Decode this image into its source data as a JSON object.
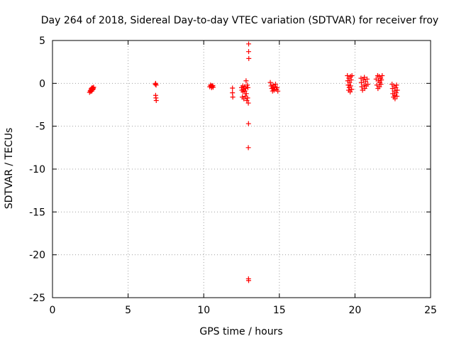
{
  "chart_data": {
    "type": "scatter",
    "title": "Day 264 of 2018, Sidereal Day-to-day VTEC variation (SDTVAR) for receiver froy",
    "xlabel": "GPS time / hours",
    "ylabel": "SDTVAR / TECUs",
    "xlim": [
      0,
      25
    ],
    "ylim": [
      -25,
      5
    ],
    "xticks": [
      0,
      5,
      10,
      15,
      20,
      25
    ],
    "yticks": [
      5,
      0,
      -5,
      -10,
      -15,
      -20,
      -25
    ],
    "grid": true,
    "marker": "+",
    "color": "#ff0000",
    "series": [
      {
        "name": "SDTVAR",
        "points": [
          [
            2.45,
            -1.05
          ],
          [
            2.5,
            -0.85
          ],
          [
            2.52,
            -0.95
          ],
          [
            2.55,
            -0.7
          ],
          [
            2.58,
            -0.6
          ],
          [
            2.6,
            -0.9
          ],
          [
            2.62,
            -0.5
          ],
          [
            2.65,
            -0.75
          ],
          [
            2.68,
            -0.55
          ],
          [
            2.7,
            -0.65
          ],
          [
            2.72,
            -0.45
          ],
          [
            6.8,
            -0.1
          ],
          [
            6.82,
            0.0
          ],
          [
            6.85,
            -0.2
          ],
          [
            6.82,
            -1.4
          ],
          [
            6.84,
            -1.7
          ],
          [
            6.86,
            -2.0
          ],
          [
            10.4,
            -0.4
          ],
          [
            10.45,
            -0.2
          ],
          [
            10.5,
            -0.3
          ],
          [
            10.52,
            -0.5
          ],
          [
            10.55,
            -0.35
          ],
          [
            10.6,
            -0.25
          ],
          [
            10.62,
            -0.45
          ],
          [
            11.9,
            -0.55
          ],
          [
            11.9,
            -1.1
          ],
          [
            11.92,
            -1.6
          ],
          [
            12.5,
            -0.5
          ],
          [
            12.52,
            -0.8
          ],
          [
            12.55,
            -1.6
          ],
          [
            12.58,
            -0.3
          ],
          [
            12.6,
            -1.0
          ],
          [
            12.62,
            -0.7
          ],
          [
            12.65,
            -1.8
          ],
          [
            12.7,
            -0.4
          ],
          [
            12.72,
            -0.9
          ],
          [
            12.75,
            -1.5
          ],
          [
            12.78,
            -0.6
          ],
          [
            12.8,
            0.3
          ],
          [
            12.82,
            -1.2
          ],
          [
            12.85,
            -2.0
          ],
          [
            12.88,
            -0.2
          ],
          [
            12.9,
            -1.7
          ],
          [
            12.92,
            -0.5
          ],
          [
            12.95,
            -2.3
          ],
          [
            12.97,
            4.6
          ],
          [
            12.97,
            3.7
          ],
          [
            12.98,
            2.9
          ],
          [
            12.96,
            -4.7
          ],
          [
            12.95,
            -7.5
          ],
          [
            12.96,
            -22.8
          ],
          [
            12.97,
            -23.0
          ],
          [
            14.4,
            0.1
          ],
          [
            14.45,
            -0.3
          ],
          [
            14.5,
            -0.6
          ],
          [
            14.55,
            -0.9
          ],
          [
            14.58,
            -0.2
          ],
          [
            14.6,
            -0.5
          ],
          [
            14.65,
            -0.8
          ],
          [
            14.7,
            -0.4
          ],
          [
            14.75,
            -0.1
          ],
          [
            14.8,
            -0.7
          ],
          [
            14.85,
            -0.5
          ],
          [
            14.9,
            -0.9
          ],
          [
            19.5,
            0.9
          ],
          [
            19.52,
            0.3
          ],
          [
            19.55,
            -0.2
          ],
          [
            19.58,
            -0.8
          ],
          [
            19.6,
            0.6
          ],
          [
            19.62,
            -0.5
          ],
          [
            19.65,
            0.1
          ],
          [
            19.68,
            -1.0
          ],
          [
            19.7,
            0.8
          ],
          [
            19.72,
            -0.3
          ],
          [
            19.75,
            0.4
          ],
          [
            19.78,
            -0.7
          ],
          [
            19.8,
            0.9
          ],
          [
            20.4,
            0.6
          ],
          [
            20.42,
            0.1
          ],
          [
            20.45,
            -0.4
          ],
          [
            20.5,
            -0.8
          ],
          [
            20.55,
            0.4
          ],
          [
            20.6,
            -0.2
          ],
          [
            20.62,
            0.7
          ],
          [
            20.65,
            -0.6
          ],
          [
            20.7,
            0.2
          ],
          [
            20.75,
            -0.3
          ],
          [
            20.8,
            0.5
          ],
          [
            20.85,
            -0.1
          ],
          [
            21.4,
            0.5
          ],
          [
            21.45,
            -0.2
          ],
          [
            21.5,
            0.9
          ],
          [
            21.52,
            -0.6
          ],
          [
            21.55,
            0.3
          ],
          [
            21.6,
            0.8
          ],
          [
            21.62,
            -0.4
          ],
          [
            21.65,
            0.1
          ],
          [
            21.7,
            0.6
          ],
          [
            21.72,
            -0.1
          ],
          [
            21.75,
            0.4
          ],
          [
            21.8,
            0.9
          ],
          [
            22.45,
            -0.1
          ],
          [
            22.48,
            -0.6
          ],
          [
            22.5,
            -1.2
          ],
          [
            22.55,
            -1.6
          ],
          [
            22.58,
            -0.3
          ],
          [
            22.6,
            -0.9
          ],
          [
            22.62,
            -1.4
          ],
          [
            22.65,
            -1.8
          ],
          [
            22.7,
            -0.5
          ],
          [
            22.72,
            -1.1
          ],
          [
            22.75,
            -0.2
          ],
          [
            22.78,
            -1.5
          ],
          [
            22.8,
            -0.8
          ]
        ]
      }
    ]
  }
}
